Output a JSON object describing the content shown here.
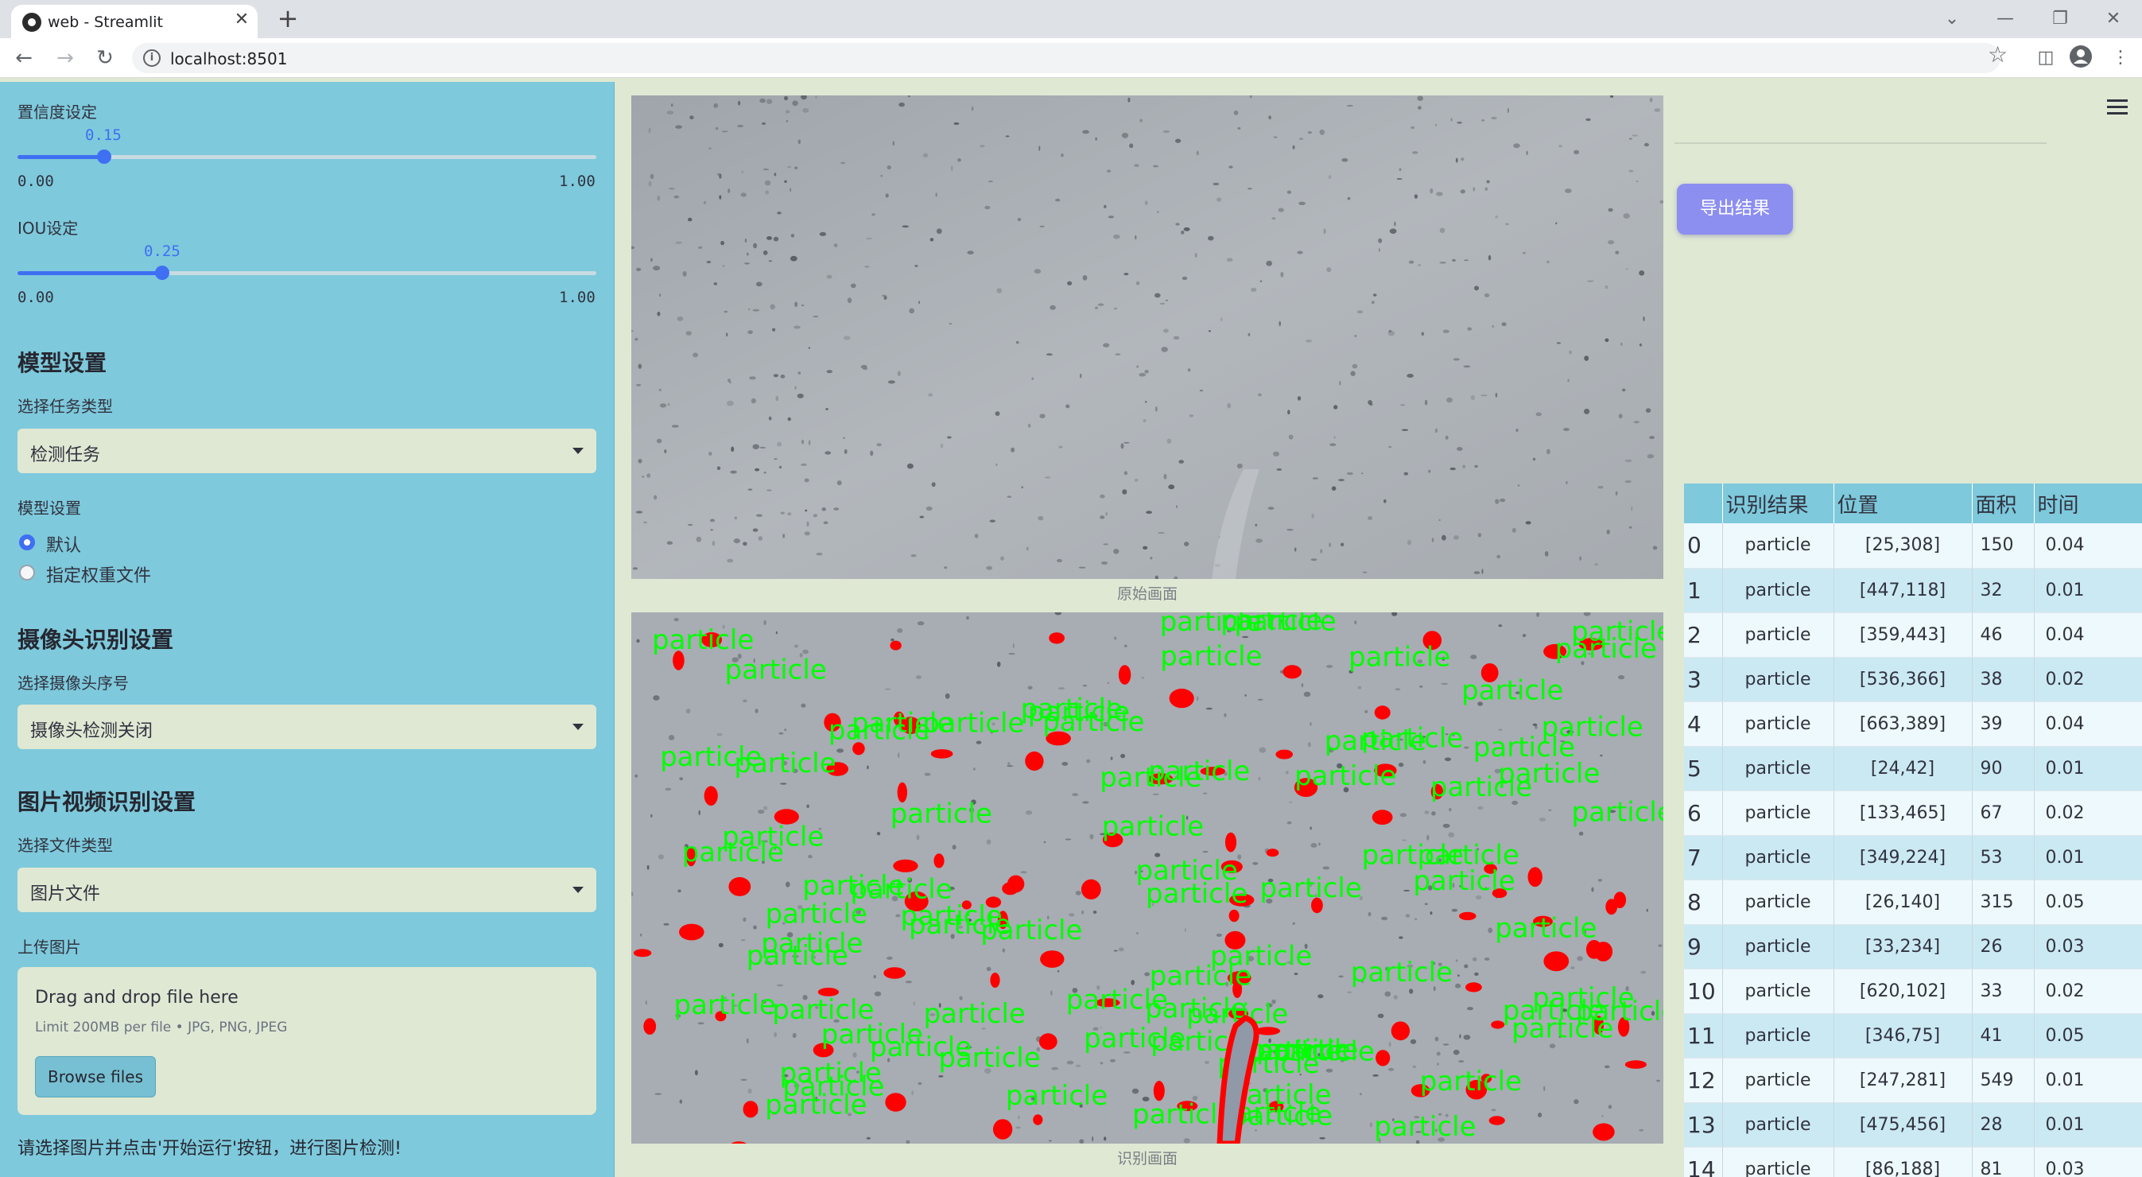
{
  "browser": {
    "tab_title": "web - Streamlit",
    "tab_close": "✕",
    "new_tab": "+",
    "url": "localhost:8501",
    "window_controls": {
      "dropdown": "⌄",
      "minimize": "—",
      "restore": "❐",
      "close": "✕"
    }
  },
  "sidebar": {
    "confidence": {
      "label": "置信度设定",
      "value": 0.15,
      "value_text": "0.15",
      "min": "0.00",
      "max": "1.00"
    },
    "iou": {
      "label": "IOU设定",
      "value": 0.25,
      "value_text": "0.25",
      "min": "0.00",
      "max": "1.00"
    },
    "model_header": "模型设置",
    "task_label": "选择任务类型",
    "task_value": "检测任务",
    "model_label": "模型设置",
    "model_options": [
      "默认",
      "指定权重文件"
    ],
    "model_selected": "默认",
    "camera_header": "摄像头识别设置",
    "camera_label": "选择摄像头序号",
    "camera_value": "摄像头检测关闭",
    "media_header": "图片视频识别设置",
    "filetype_label": "选择文件类型",
    "filetype_value": "图片文件",
    "upload_label": "上传图片",
    "upload_title": "Drag and drop file here",
    "upload_limit": "Limit 200MB per file • JPG, PNG, JPEG",
    "browse_label": "Browse files",
    "hint": "请选择图片并点击'开始运行'按钮，进行图片检测!"
  },
  "main": {
    "original_caption": "原始画面",
    "detected_caption": "识别画面",
    "detection_label": "particle",
    "export_label": "导出结果",
    "colors": {
      "accent": "#3f6ff2",
      "sidebar": "#7ec9dc",
      "export": "#8c8ef0",
      "box": "#ff0000",
      "label": "#00ff00"
    }
  },
  "table": {
    "columns": [
      "",
      "识别结果",
      "位置",
      "面积",
      "时间"
    ],
    "rows": [
      [
        "0",
        "particle",
        "[25,308]",
        "150",
        "0.04"
      ],
      [
        "1",
        "particle",
        "[447,118]",
        "32",
        "0.01"
      ],
      [
        "2",
        "particle",
        "[359,443]",
        "46",
        "0.04"
      ],
      [
        "3",
        "particle",
        "[536,366]",
        "38",
        "0.02"
      ],
      [
        "4",
        "particle",
        "[663,389]",
        "39",
        "0.04"
      ],
      [
        "5",
        "particle",
        "[24,42]",
        "90",
        "0.01"
      ],
      [
        "6",
        "particle",
        "[133,465]",
        "67",
        "0.02"
      ],
      [
        "7",
        "particle",
        "[349,224]",
        "53",
        "0.01"
      ],
      [
        "8",
        "particle",
        "[26,140]",
        "315",
        "0.05"
      ],
      [
        "9",
        "particle",
        "[33,234]",
        "26",
        "0.03"
      ],
      [
        "10",
        "particle",
        "[620,102]",
        "33",
        "0.02"
      ],
      [
        "11",
        "particle",
        "[346,75]",
        "41",
        "0.05"
      ],
      [
        "12",
        "particle",
        "[247,281]",
        "549",
        "0.01"
      ],
      [
        "13",
        "particle",
        "[475,456]",
        "28",
        "0.01"
      ],
      [
        "14",
        "particle",
        "[86,188]",
        "81",
        "0.03"
      ]
    ]
  }
}
